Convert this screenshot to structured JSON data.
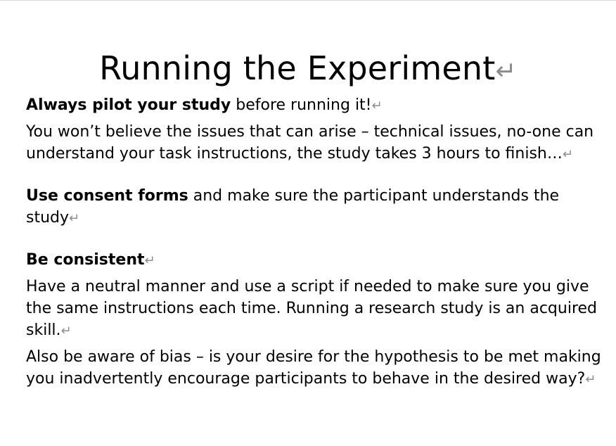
{
  "document": {
    "title": "Running the Experiment",
    "paragraph_mark": "↵",
    "sections": [
      {
        "heading_bold": "Always pilot your study",
        "heading_rest": " before running it!",
        "body": "You won’t believe the issues that can arise – technical issues, no-one can understand your task instructions, the study takes 3 hours to finish…"
      },
      {
        "heading_bold": "Use consent forms",
        "heading_rest": " and make sure the participant understands the study"
      },
      {
        "heading_bold": "Be consistent",
        "body": "Have a neutral manner and use a script if needed to make sure you give the same instructions each time. Running a research study is an acquired skill.",
        "body2": "Also be aware of bias – is your desire for the hypothesis to be met making you inadvertently encourage participants to behave in the desired way?"
      }
    ]
  }
}
